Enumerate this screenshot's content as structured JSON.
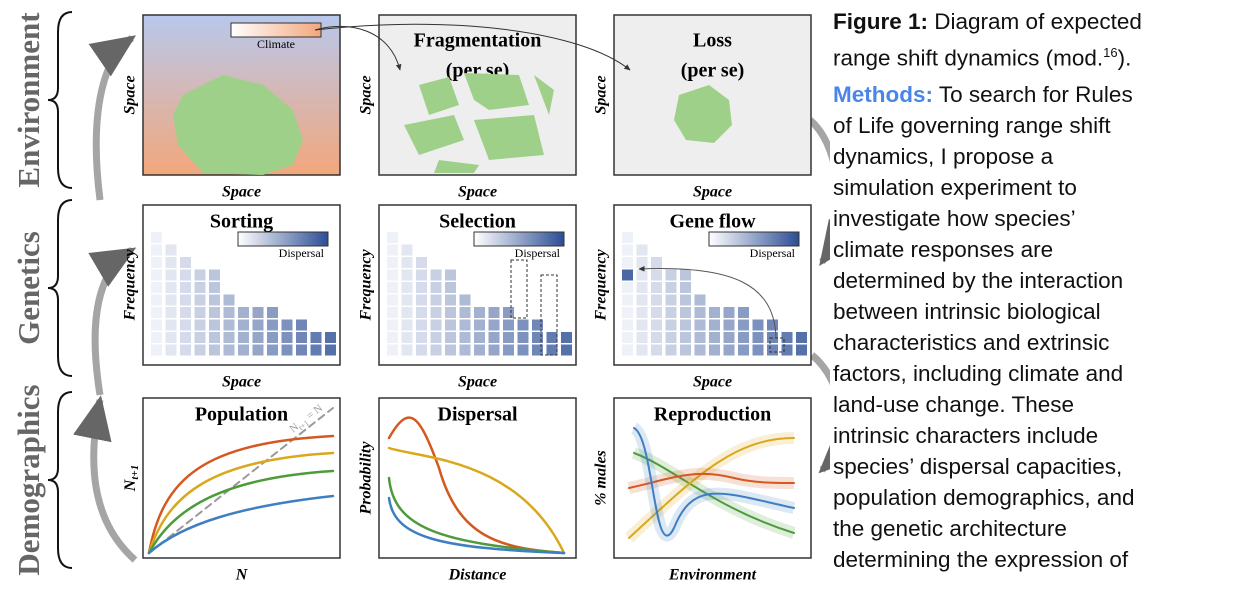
{
  "rows": [
    {
      "label": "Environment",
      "panels": [
        {
          "title": [],
          "legend": "Climate",
          "x_label": "Space",
          "y_label": "Space"
        },
        {
          "title": [
            "Fragmentation",
            "(per se)"
          ],
          "x_label": "Space",
          "y_label": "Space"
        },
        {
          "title": [
            "Loss",
            "(per se)"
          ],
          "x_label": "Space",
          "y_label": "Space"
        }
      ]
    },
    {
      "label": "Genetics",
      "panels": [
        {
          "title": [
            "Sorting"
          ],
          "legend": "Dispersal",
          "x_label": "Space",
          "y_label": "Frequency"
        },
        {
          "title": [
            "Selection"
          ],
          "legend": "Dispersal",
          "x_label": "Space",
          "y_label": "Frequency"
        },
        {
          "title": [
            "Gene flow"
          ],
          "legend": "Dispersal",
          "x_label": "Space",
          "y_label": "Frequency"
        }
      ]
    },
    {
      "label": "Demographics",
      "panels": [
        {
          "title": [
            "Population"
          ],
          "x_label": "N",
          "y_label": "N",
          "y_sub": "t+1",
          "diag_label": [
            "N",
            "t+1",
            " = N"
          ]
        },
        {
          "title": [
            "Dispersal"
          ],
          "x_label": "Distance",
          "y_label": "Probability"
        },
        {
          "title": [
            "Reproduction"
          ],
          "x_label": "Environment",
          "y_label": "% males"
        }
      ]
    }
  ],
  "caption": {
    "label": "Figure 1:",
    "lines": [
      "Diagram of expected",
      "range shift dynamics (mod."
    ],
    "ref": "16",
    "end": ")."
  },
  "methods": {
    "label": "Methods:",
    "lines": [
      "To search for Rules",
      "of Life governing range shift",
      "dynamics, I propose a",
      "simulation experiment to",
      "investigate how species’",
      "climate responses are",
      "determined by the interaction",
      "between intrinsic biological",
      "characteristics and extrinsic",
      "factors, including climate and",
      "land-use change. These",
      "intrinsic characters include",
      "species’ dispersal capacities,",
      "population demographics, and",
      "the genetic architecture",
      "determining the expression of"
    ]
  }
}
